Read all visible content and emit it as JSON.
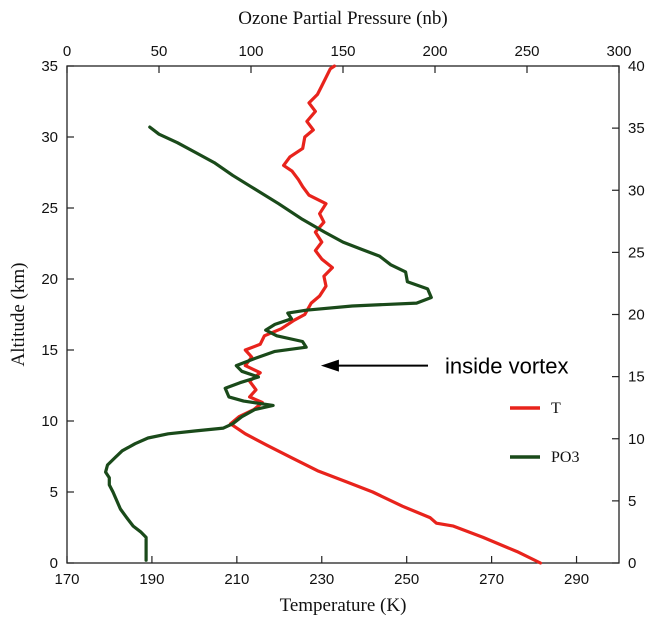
{
  "chart_data": {
    "type": "line",
    "title": "",
    "top_xlabel": "Ozone  Partial  Pressure (nb)",
    "bottom_xlabel": "Temperature (K)",
    "left_ylabel": "Altitude (km)",
    "axes": {
      "temperature_x": {
        "lim": [
          170,
          300
        ],
        "ticks": [
          170,
          190,
          210,
          230,
          250,
          270,
          290
        ]
      },
      "pressure_x": {
        "lim": [
          0,
          300
        ],
        "ticks": [
          0,
          50,
          100,
          150,
          200,
          250,
          300
        ]
      },
      "altitude_y": {
        "lim": [
          0,
          35
        ],
        "ticks": [
          0,
          5,
          10,
          15,
          20,
          25,
          30,
          35
        ]
      },
      "right_y": {
        "lim": [
          0,
          40
        ],
        "ticks": [
          0,
          5,
          10,
          15,
          20,
          25,
          30,
          35,
          40
        ]
      }
    },
    "legend_position": "right",
    "grid": false,
    "series": [
      {
        "name": "T",
        "color": "#e8231c",
        "x_axis": "Temperature (K)",
        "points": [
          [
            281.5,
            0.0
          ],
          [
            276.0,
            0.8
          ],
          [
            268.0,
            1.8
          ],
          [
            261.0,
            2.6
          ],
          [
            257.0,
            2.8
          ],
          [
            255.5,
            3.2
          ],
          [
            249.0,
            4.0
          ],
          [
            242.0,
            5.0
          ],
          [
            236.0,
            5.7
          ],
          [
            229.0,
            6.5
          ],
          [
            223.0,
            7.4
          ],
          [
            217.0,
            8.3
          ],
          [
            212.0,
            9.1
          ],
          [
            208.5,
            9.8
          ],
          [
            210.5,
            10.3
          ],
          [
            214.0,
            10.8
          ],
          [
            216.0,
            11.3
          ],
          [
            213.0,
            11.7
          ],
          [
            214.5,
            12.2
          ],
          [
            213.0,
            12.8
          ],
          [
            215.5,
            13.4
          ],
          [
            212.0,
            13.9
          ],
          [
            213.5,
            14.5
          ],
          [
            212.0,
            15.0
          ],
          [
            215.5,
            15.4
          ],
          [
            216.5,
            16.0
          ],
          [
            220.5,
            16.5
          ],
          [
            223.5,
            17.1
          ],
          [
            226.0,
            17.5
          ],
          [
            227.5,
            18.3
          ],
          [
            229.5,
            18.8
          ],
          [
            231.0,
            19.5
          ],
          [
            230.5,
            20.2
          ],
          [
            232.5,
            20.8
          ],
          [
            230.0,
            21.4
          ],
          [
            228.5,
            22.0
          ],
          [
            230.0,
            22.6
          ],
          [
            228.5,
            23.3
          ],
          [
            230.5,
            24.0
          ],
          [
            229.5,
            24.6
          ],
          [
            231.0,
            25.3
          ],
          [
            227.0,
            25.9
          ],
          [
            225.5,
            26.5
          ],
          [
            224.5,
            27.0
          ],
          [
            223.0,
            27.6
          ],
          [
            221.0,
            28.0
          ],
          [
            222.5,
            28.6
          ],
          [
            225.5,
            29.2
          ],
          [
            226.0,
            30.0
          ],
          [
            228.0,
            30.5
          ],
          [
            226.5,
            31.1
          ],
          [
            228.5,
            31.8
          ],
          [
            227.0,
            32.4
          ],
          [
            229.0,
            33.0
          ],
          [
            230.0,
            33.6
          ],
          [
            231.0,
            34.2
          ],
          [
            232.0,
            34.8
          ],
          [
            233.0,
            35.0
          ]
        ]
      },
      {
        "name": "PO3",
        "color": "#1a4a1a",
        "x_axis": "Ozone Partial Pressure (nb)",
        "points": [
          [
            43,
            0.2
          ],
          [
            43,
            1.8
          ],
          [
            40,
            2.2
          ],
          [
            36,
            2.6
          ],
          [
            33,
            3.1
          ],
          [
            29,
            3.8
          ],
          [
            27,
            4.4
          ],
          [
            25,
            5.0
          ],
          [
            23,
            5.5
          ],
          [
            23,
            6.0
          ],
          [
            21,
            6.4
          ],
          [
            22,
            6.9
          ],
          [
            26,
            7.4
          ],
          [
            30,
            7.9
          ],
          [
            37,
            8.4
          ],
          [
            44,
            8.8
          ],
          [
            55,
            9.1
          ],
          [
            70,
            9.3
          ],
          [
            85,
            9.5
          ],
          [
            90,
            9.8
          ],
          [
            95,
            10.3
          ],
          [
            102,
            10.8
          ],
          [
            112,
            11.1
          ],
          [
            96,
            11.4
          ],
          [
            88,
            11.7
          ],
          [
            86,
            12.3
          ],
          [
            94,
            12.7
          ],
          [
            104,
            13.1
          ],
          [
            95,
            13.5
          ],
          [
            92,
            13.9
          ],
          [
            102,
            14.4
          ],
          [
            113,
            14.9
          ],
          [
            130,
            15.2
          ],
          [
            128,
            15.6
          ],
          [
            114,
            16.0
          ],
          [
            108,
            16.4
          ],
          [
            113,
            16.8
          ],
          [
            122,
            17.2
          ],
          [
            120,
            17.6
          ],
          [
            130,
            17.8
          ],
          [
            155,
            18.1
          ],
          [
            190,
            18.3
          ],
          [
            198,
            18.7
          ],
          [
            196,
            19.3
          ],
          [
            185,
            19.8
          ],
          [
            184,
            20.5
          ],
          [
            176,
            21.0
          ],
          [
            170,
            21.6
          ],
          [
            160,
            22.1
          ],
          [
            150,
            22.6
          ],
          [
            140,
            23.3
          ],
          [
            128,
            24.2
          ],
          [
            115,
            25.3
          ],
          [
            100,
            26.5
          ],
          [
            90,
            27.3
          ],
          [
            80,
            28.2
          ],
          [
            70,
            28.9
          ],
          [
            60,
            29.6
          ],
          [
            50,
            30.2
          ],
          [
            45,
            30.7
          ]
        ]
      }
    ],
    "annotation": {
      "text": "inside vortex",
      "arrow_target": {
        "x_pressure": 138,
        "y_altitude": 13.9
      }
    }
  }
}
